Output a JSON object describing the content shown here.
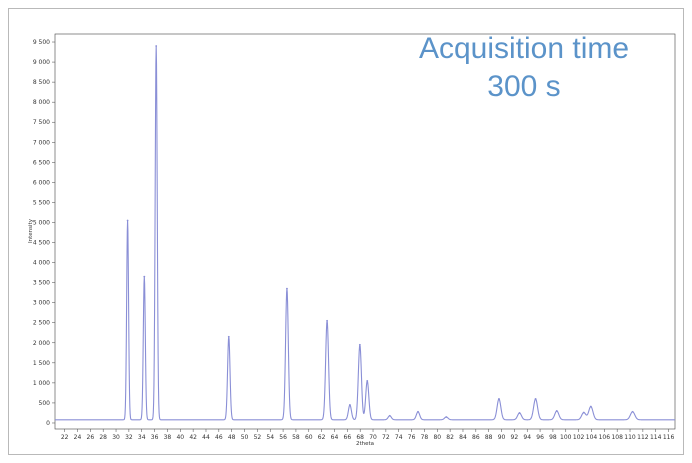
{
  "chart_data": {
    "type": "line",
    "title": "",
    "xlabel": "2theta",
    "ylabel": "Intensity",
    "xlim": [
      20.5,
      117
    ],
    "ylim": [
      -150,
      9700
    ],
    "x_ticks": [
      22,
      24,
      26,
      28,
      30,
      32,
      34,
      36,
      38,
      40,
      42,
      44,
      46,
      48,
      50,
      52,
      54,
      56,
      58,
      60,
      62,
      64,
      66,
      68,
      70,
      72,
      74,
      76,
      78,
      80,
      82,
      84,
      86,
      88,
      90,
      92,
      94,
      96,
      98,
      100,
      102,
      104,
      106,
      108,
      110,
      112,
      114,
      116
    ],
    "y_ticks": [
      0,
      500,
      1000,
      1500,
      2000,
      2500,
      3000,
      3500,
      4000,
      4500,
      5000,
      5500,
      6000,
      6500,
      7000,
      7500,
      8000,
      8500,
      9000,
      9500
    ],
    "y_tick_labels": [
      "0",
      "500",
      "1 000",
      "1 500",
      "2 000",
      "2 500",
      "3 000",
      "3 500",
      "4 000",
      "4 500",
      "5 000",
      "5 500",
      "6 000",
      "6 500",
      "7 000",
      "7 500",
      "8 000",
      "8 500",
      "9 000",
      "9 500"
    ],
    "baseline": 80,
    "grid": false,
    "line_color": "#8a8fd6",
    "annotation": [
      "Acquisition time",
      "300 s"
    ],
    "annotation_color": "#5b93c9",
    "series": [
      {
        "peaks": [
          {
            "x": 31.8,
            "y": 5050
          },
          {
            "x": 34.4,
            "y": 3650
          },
          {
            "x": 36.25,
            "y": 9400
          },
          {
            "x": 47.55,
            "y": 2150
          },
          {
            "x": 56.6,
            "y": 3350
          },
          {
            "x": 62.85,
            "y": 2550
          },
          {
            "x": 66.4,
            "y": 450
          },
          {
            "x": 67.95,
            "y": 1950
          },
          {
            "x": 69.1,
            "y": 1050
          },
          {
            "x": 72.6,
            "y": 180
          },
          {
            "x": 77.0,
            "y": 280
          },
          {
            "x": 81.4,
            "y": 150
          },
          {
            "x": 89.6,
            "y": 600
          },
          {
            "x": 92.8,
            "y": 250
          },
          {
            "x": 95.3,
            "y": 600
          },
          {
            "x": 98.6,
            "y": 300
          },
          {
            "x": 102.8,
            "y": 260
          },
          {
            "x": 103.9,
            "y": 410
          },
          {
            "x": 110.4,
            "y": 280
          }
        ]
      }
    ]
  }
}
